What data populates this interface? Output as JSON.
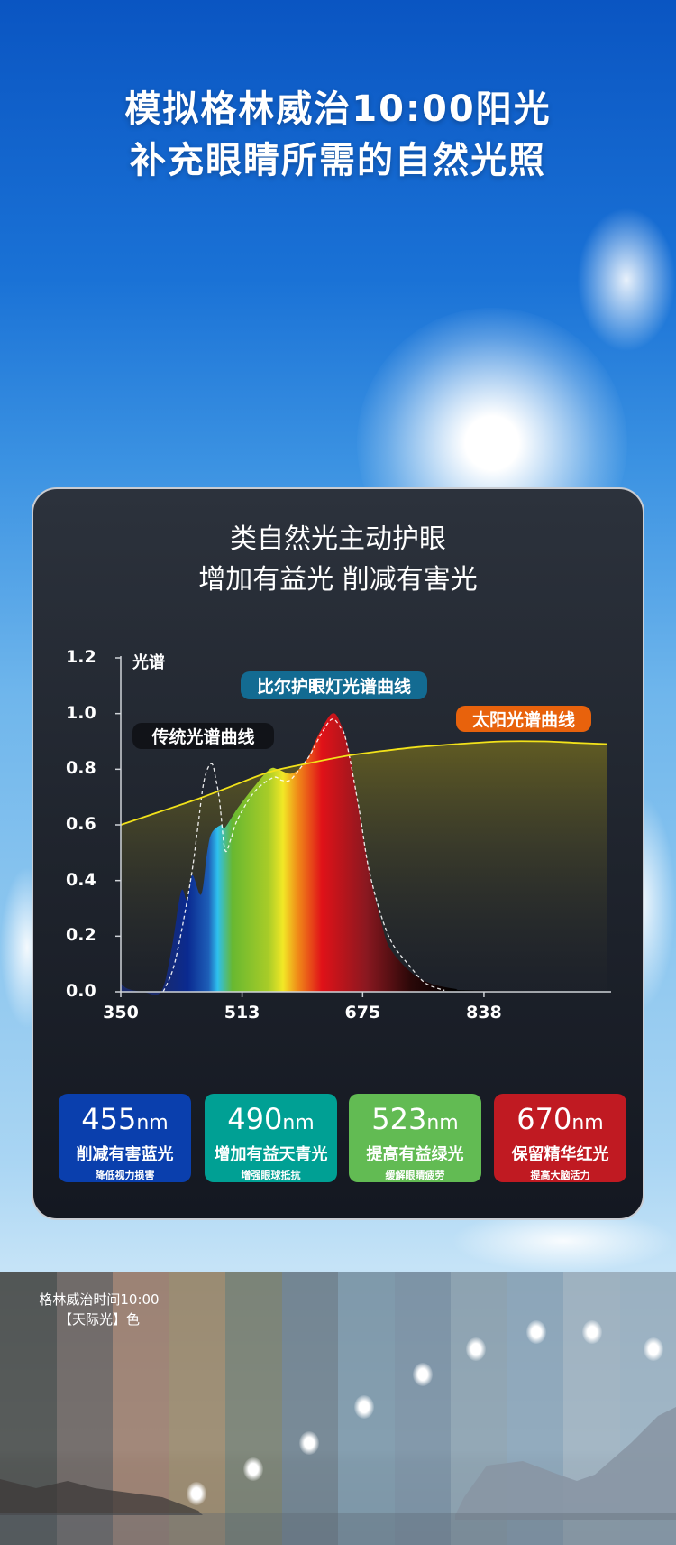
{
  "header": {
    "line1": "模拟格林威治10:00阳光",
    "line2": "补充眼睛所需的自然光照"
  },
  "card": {
    "heading1": "类自然光主动护眼",
    "heading2": "增加有益光 削减有害光"
  },
  "chart_data": {
    "type": "area",
    "ylabel": "光谱",
    "xticks": [
      350,
      513,
      675,
      838
    ],
    "yticks": [
      "0.0",
      "0.2",
      "0.4",
      "0.6",
      "0.8",
      "1.0",
      "1.2"
    ],
    "xlim": [
      350,
      1004
    ],
    "ylim": [
      0,
      1.2
    ],
    "series": [
      {
        "name": "比尔护眼灯光谱曲线",
        "color": "rainbow",
        "label_color": "#136b92",
        "x": [
          350,
          360,
          380,
          404,
          418,
          431,
          439,
          446,
          458,
          466,
          472,
          485,
          490,
          507,
          530,
          550,
          561,
          580,
          599,
          615,
          634,
          646,
          658,
          670,
          685,
          700,
          712,
          740,
          766,
          800,
          820,
          1004
        ],
        "y": [
          0.03,
          0.01,
          0.0,
          0.0,
          0.15,
          0.36,
          0.33,
          0.42,
          0.35,
          0.5,
          0.57,
          0.6,
          0.59,
          0.66,
          0.74,
          0.8,
          0.8,
          0.785,
          0.83,
          0.92,
          1.0,
          0.96,
          0.85,
          0.65,
          0.42,
          0.25,
          0.155,
          0.07,
          0.03,
          0.01,
          0.005,
          0.0
        ]
      },
      {
        "name": "传统光谱曲线",
        "color": "#ffffff",
        "label_color": "#111318",
        "dashed": true,
        "x": [
          407,
          420,
          431,
          445,
          453,
          462,
          472,
          478,
          483,
          490,
          498,
          507,
          530,
          555,
          566,
          577,
          590,
          604,
          620,
          634,
          645,
          653,
          670,
          685,
          710,
          739,
          760,
          785
        ],
        "y": [
          0.0,
          0.08,
          0.21,
          0.42,
          0.58,
          0.76,
          0.82,
          0.76,
          0.68,
          0.51,
          0.55,
          0.62,
          0.72,
          0.77,
          0.76,
          0.76,
          0.8,
          0.85,
          0.93,
          0.98,
          0.95,
          0.9,
          0.66,
          0.42,
          0.2,
          0.09,
          0.03,
          0.005
        ]
      },
      {
        "name": "太阳光谱曲线",
        "color": "#f2e21a",
        "label_color": "#e8620c",
        "x": [
          350,
          400,
          450,
          500,
          550,
          600,
          658,
          700,
          750,
          800,
          863,
          920,
          960,
          1004
        ],
        "y": [
          0.6,
          0.645,
          0.69,
          0.74,
          0.79,
          0.82,
          0.85,
          0.865,
          0.88,
          0.89,
          0.9,
          0.9,
          0.895,
          0.89
        ]
      }
    ]
  },
  "badges": [
    {
      "value": "455",
      "unit": "nm",
      "title": "削减有害蓝光",
      "sub": "降低视力损害",
      "color": "#0a3fad"
    },
    {
      "value": "490",
      "unit": "nm",
      "title": "增加有益天青光",
      "sub": "增强眼球抵抗",
      "color": "#00a094"
    },
    {
      "value": "523",
      "unit": "nm",
      "title": "提高有益绿光",
      "sub": "缓解眼睛疲劳",
      "color": "#62bb53"
    },
    {
      "value": "670",
      "unit": "nm",
      "title": "保留精华红光",
      "sub": "提高大脑活力",
      "color": "#c01a22"
    }
  ],
  "bottom": {
    "line1": "格林威治时间10:00",
    "line2": "【天际光】色",
    "strip_colors": [
      "#4a4b48",
      "#6d635e",
      "#a17f6c",
      "#9f8a6a",
      "#7a8070",
      "#71838f",
      "#7f9aab",
      "#7c93a6",
      "#8fa5b3",
      "#8ea8bc",
      "#a3b6c4",
      "#9fb5c6"
    ]
  }
}
